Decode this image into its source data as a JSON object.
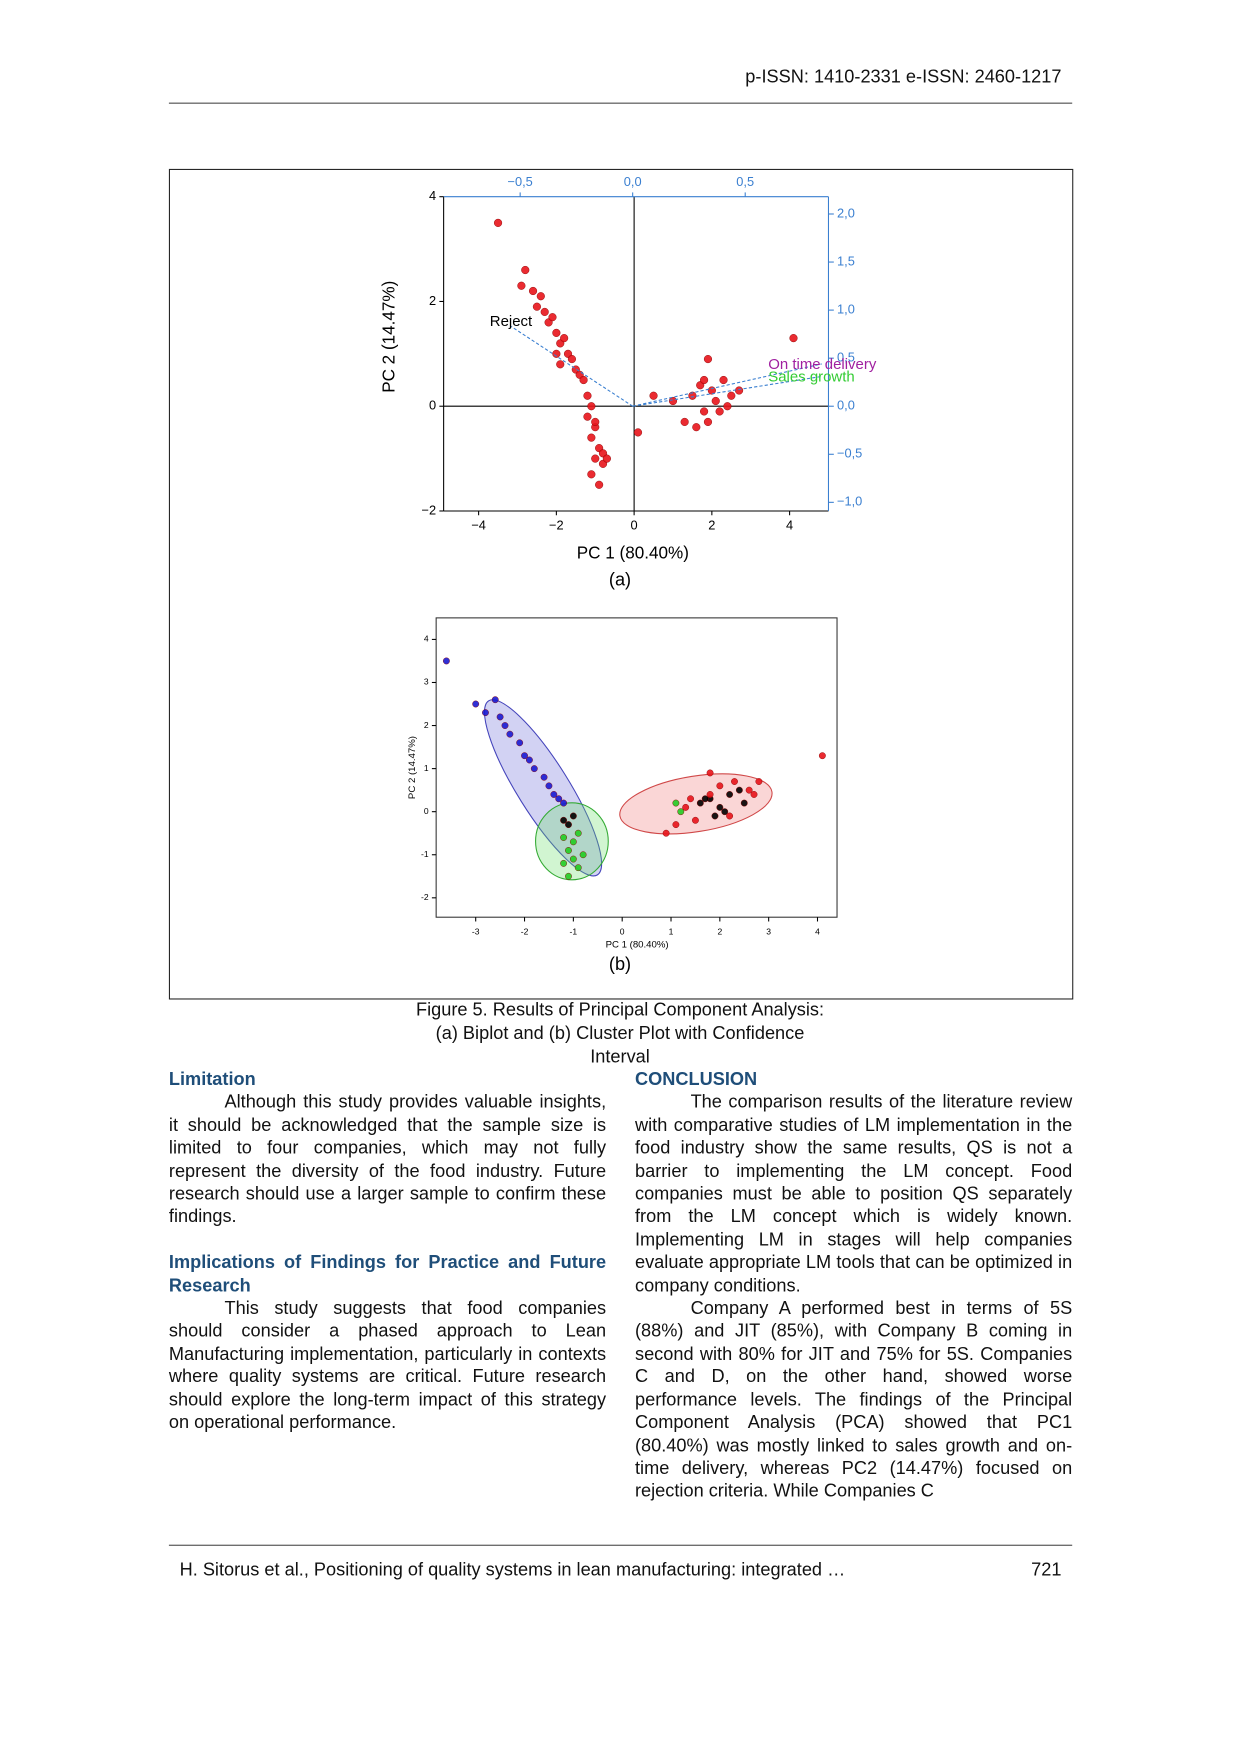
{
  "header": {
    "issn": "p-ISSN: 1410-2331  e-ISSN: 2460-1217"
  },
  "chart_data": [
    {
      "type": "scatter",
      "xlabel": "PC 1 (80.40%)",
      "ylabel": "PC 2 (14.47%)",
      "xlim": [
        -4.9,
        5
      ],
      "ylim": [
        -2,
        4
      ],
      "xticks": [
        {
          "value": -4,
          "label": "−4"
        },
        {
          "value": -2,
          "label": "−2"
        },
        0,
        2,
        4
      ],
      "yticks": [
        {
          "value": -2,
          "label": "−2"
        },
        0,
        2,
        4
      ],
      "x2lim": [
        -0.84,
        0.87
      ],
      "x2ticks": [
        {
          "value": -0.5,
          "label": "−0,5"
        },
        {
          "value": 0,
          "label": "0,0"
        },
        {
          "value": 0.5,
          "label": "0,5"
        }
      ],
      "y2lim": [
        -1.09,
        2.18
      ],
      "y2ticks": [
        {
          "value": -1,
          "label": "−1,0"
        },
        {
          "value": -0.5,
          "label": "−0,5"
        },
        {
          "value": 0,
          "label": "0,0"
        },
        {
          "value": 0.5,
          "label": "0,5"
        },
        {
          "value": 1,
          "label": "1,0"
        },
        {
          "value": 1.5,
          "label": "1,5"
        },
        {
          "value": 2,
          "label": "2,0"
        }
      ],
      "series": [
        {
          "color": "#e8141b",
          "x": [
            -2.8,
            -2.9,
            -2.6,
            -2.5,
            -2.3,
            -2.2,
            -2.0,
            -1.9,
            -1.7,
            -1.6,
            -1.5,
            -1.4,
            -2.4,
            -2.1,
            -1.8,
            -1.3,
            -2.0,
            -1.9,
            -1.2,
            -1.1,
            -1.2,
            -1.0,
            -1.1,
            -0.9,
            -1.0,
            -0.8,
            -1.1,
            -0.9,
            -1.0,
            -0.8,
            -0.7,
            1.0,
            1.3,
            1.5,
            1.7,
            1.8,
            2.0,
            2.1,
            2.3,
            2.5,
            2.7,
            1.6,
            1.9,
            2.2,
            1.8,
            2.4,
            1.9,
            -3.5,
            4.1,
            0.1,
            0.5
          ],
          "y": [
            2.6,
            2.3,
            2.2,
            1.9,
            1.8,
            1.6,
            1.4,
            1.2,
            1.0,
            0.9,
            0.7,
            0.6,
            2.1,
            1.7,
            1.3,
            0.5,
            1.0,
            0.8,
            0.2,
            0.0,
            -0.2,
            -0.4,
            -0.6,
            -0.8,
            -1.0,
            -1.1,
            -1.3,
            -1.5,
            -0.3,
            -0.9,
            -1.0,
            0.1,
            -0.3,
            0.2,
            0.4,
            -0.1,
            0.3,
            0.1,
            0.5,
            0.2,
            0.3,
            -0.4,
            -0.3,
            -0.1,
            0.5,
            0.0,
            0.9,
            3.5,
            1.3,
            -0.5,
            0.2
          ]
        }
      ],
      "loadings": [
        {
          "label": "Reject",
          "x": -0.54,
          "y": 0.83,
          "color": "#000000"
        },
        {
          "label": "On time delivery",
          "x": 0.84,
          "y": 0.44,
          "color": "#a020a0"
        },
        {
          "label": "Sales growth",
          "x": 0.84,
          "y": 0.31,
          "color": "#33cc33"
        }
      ],
      "panel_label": "(a)"
    },
    {
      "type": "scatter",
      "xlabel": "PC 1 (80.40%)",
      "ylabel": "PC 2 (14.47%)",
      "xlim": [
        -3.81,
        4.4
      ],
      "ylim": [
        -2.45,
        4.5
      ],
      "xticks": [
        -3,
        -2,
        -1,
        0,
        1,
        2,
        3,
        4
      ],
      "yticks": [
        -2,
        -1,
        0,
        1,
        2,
        3,
        4
      ],
      "series": [
        {
          "color": "#1a1ad0",
          "x": [
            -3.6,
            -3.0,
            -2.8,
            -2.6,
            -2.4,
            -2.3,
            -2.1,
            -2.0,
            -1.8,
            -1.6,
            -1.5,
            -1.4,
            -2.5,
            -1.9,
            -1.3,
            -1.2
          ],
          "y": [
            3.5,
            2.5,
            2.3,
            2.6,
            2.0,
            1.8,
            1.6,
            1.3,
            1.0,
            0.8,
            0.6,
            0.4,
            2.2,
            1.2,
            0.3,
            0.2
          ]
        },
        {
          "color": "#22cc22",
          "x": [
            -1.2,
            -1.1,
            -1.0,
            -0.9,
            -1.1,
            -1.0,
            -0.8,
            -1.2,
            -0.9,
            1.1,
            1.2
          ],
          "y": [
            -0.6,
            -0.9,
            -1.1,
            -1.3,
            -1.5,
            -0.7,
            -1.0,
            -1.2,
            -0.5,
            0.2,
            0.0
          ]
        },
        {
          "color": "#000000",
          "x": [
            -1.2,
            -1.1,
            -1.0,
            1.6,
            1.8,
            2.0,
            2.2,
            2.4,
            1.9,
            2.1,
            1.7,
            2.5
          ],
          "y": [
            -0.2,
            -0.3,
            -0.1,
            0.2,
            0.3,
            0.1,
            0.4,
            0.5,
            -0.1,
            0.0,
            0.3,
            0.2
          ]
        },
        {
          "color": "#e8141b",
          "x": [
            0.9,
            1.1,
            1.3,
            1.5,
            1.8,
            2.0,
            2.3,
            2.6,
            2.8,
            1.4,
            2.7,
            4.1,
            1.8,
            2.2
          ],
          "y": [
            -0.5,
            -0.3,
            0.1,
            -0.2,
            0.4,
            0.6,
            0.7,
            0.5,
            0.7,
            0.3,
            0.4,
            1.3,
            0.9,
            -0.1
          ]
        }
      ],
      "panel_label": "(b)"
    }
  ],
  "figure": {
    "caption": [
      "Figure 5. Results of Principal Component Analysis:",
      "(a) Biplot and (b) Cluster Plot with Confidence Interval"
    ]
  },
  "left": {
    "h1": "Limitation",
    "p1": "Although this study provides valuable insights, it should be acknowledged that the sample size is limited to four companies, which may not fully represent the diversity of the food industry. Future research should use a larger sample to confirm these findings.",
    "h2": "Implications of Findings for Practice and Future Research",
    "p2": "This study suggests that food companies should consider a phased approach to Lean Manufacturing implementation, particularly in contexts where quality systems are critical. Future research should explore the long-term impact of this strategy on operational performance."
  },
  "right": {
    "h1": "CONCLUSION",
    "p1": "The comparison results of the literature review with comparative studies of LM implementation in the food industry show the same results, QS is not a barrier to implementing the LM concept. Food companies must be able to position QS separately from the LM concept which is widely known. Implementing LM in stages will help companies evaluate appropriate LM tools that can be optimized in company conditions.",
    "p2": "Company A performed best in terms of 5S (88%) and JIT (85%), with Company B coming in second with 80% for JIT and 75% for 5S. Companies C and D, on the other hand, showed worse performance levels. The findings of the Principal Component Analysis (PCA) showed that PC1 (80.40%) was mostly linked to sales growth and on-time delivery, whereas PC2 (14.47%) focused on rejection criteria. While Companies C"
  },
  "footer": {
    "citation": "H. Sitorus et al., Positioning of quality systems in lean manufacturing: integrated …",
    "page": "721"
  }
}
